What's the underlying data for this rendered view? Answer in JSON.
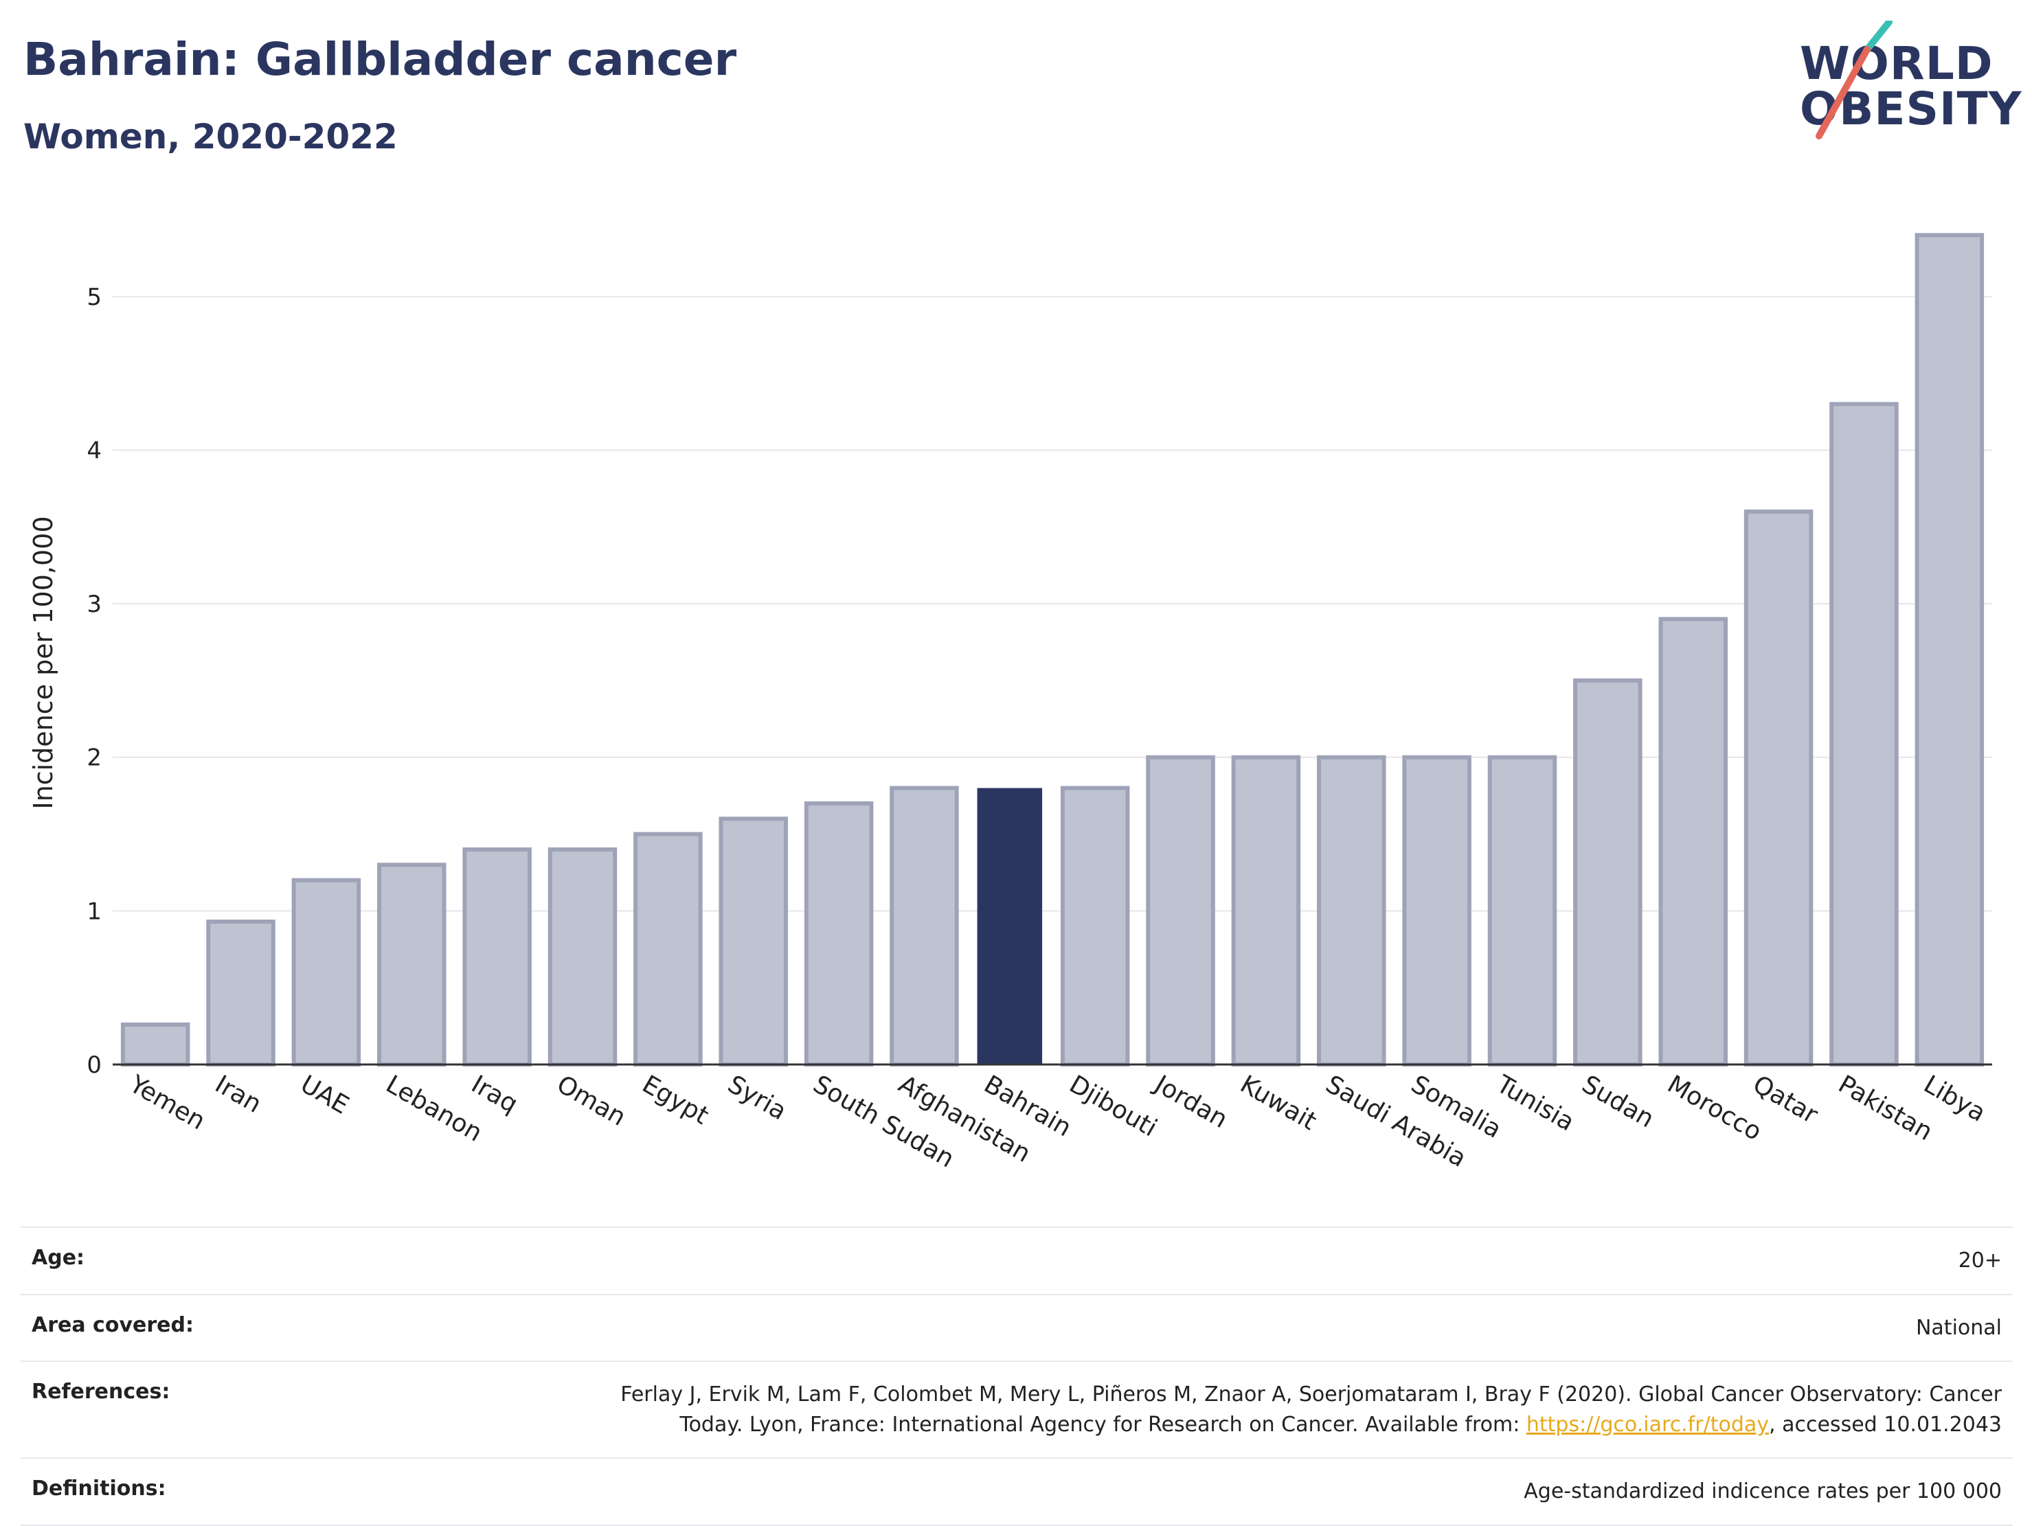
{
  "header": {
    "title": "Bahrain: Gallbladder cancer",
    "subtitle": "Women, 2020-2022"
  },
  "logo": {
    "line1": "WORLD",
    "line2": "OBESITY",
    "colors": {
      "text": "#2b3660",
      "slash_top": "#3bbfb2",
      "slash_bottom": "#e4675a"
    }
  },
  "chart_data": {
    "type": "bar",
    "categories": [
      "Yemen",
      "Iran",
      "UAE",
      "Lebanon",
      "Iraq",
      "Oman",
      "Egypt",
      "Syria",
      "South Sudan",
      "Afghanistan",
      "Bahrain",
      "Djibouti",
      "Jordan",
      "Kuwait",
      "Saudi Arabia",
      "Somalia",
      "Tunisia",
      "Sudan",
      "Morocco",
      "Qatar",
      "Pakistan",
      "Libya"
    ],
    "values": [
      0.26,
      0.93,
      1.2,
      1.3,
      1.4,
      1.4,
      1.5,
      1.6,
      1.7,
      1.8,
      1.8,
      1.8,
      2.0,
      2.0,
      2.0,
      2.0,
      2.0,
      2.5,
      2.9,
      3.6,
      4.3,
      5.4
    ],
    "highlight": "Bahrain",
    "ylabel": "Incidence per 100,000",
    "ylim": [
      0,
      5.5
    ],
    "yticks": [
      0,
      1,
      2,
      3,
      4,
      5
    ],
    "grid": true,
    "colors": {
      "bar": "#bfc2d0",
      "bar_edge": "#9ea3b8",
      "highlight": "#2b3660",
      "grid": "#e6e6ea"
    }
  },
  "info_table": {
    "age_label": "Age:",
    "age_value": "20+",
    "area_label": "Area covered:",
    "area_value": "National",
    "references_label": "References:",
    "references_text_1": "Ferlay J, Ervik M, Lam F, Colombet M, Mery L, Piñeros M, Znaor A, Soerjomataram I, Bray F (2020). Global Cancer Observatory: Cancer Today. Lyon, France: International Agency for Research on Cancer. Available from: ",
    "references_link": "https://gco.iarc.fr/today",
    "references_text_2": ", accessed 10.01.2043",
    "definitions_label": "Definitions:",
    "definitions_value": "Age-standardized indicence rates per 100 000"
  }
}
